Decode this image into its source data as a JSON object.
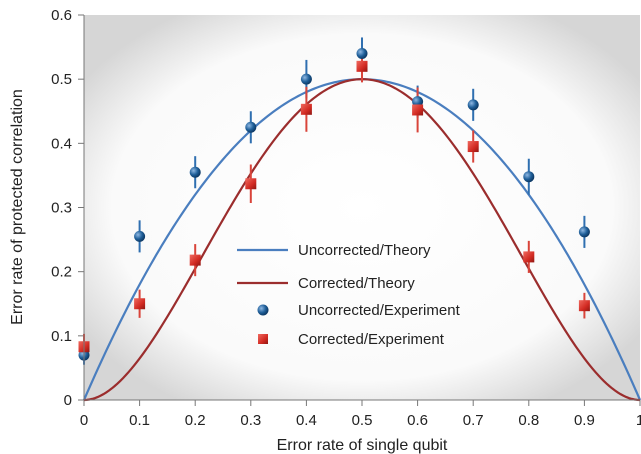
{
  "chart_data": {
    "type": "scatter",
    "xlabel": "Error rate of single qubit",
    "ylabel": "Error rate of protected correlation",
    "xlim": [
      0,
      1
    ],
    "ylim": [
      0,
      0.6
    ],
    "xticks": [
      "0",
      "0.1",
      "0.2",
      "0.3",
      "0.4",
      "0.5",
      "0.6",
      "0.7",
      "0.8",
      "0.9",
      "1"
    ],
    "yticks": [
      "0",
      "0.1",
      "0.2",
      "0.3",
      "0.4",
      "0.5",
      "0.6"
    ],
    "legend_position": "center",
    "colors": {
      "uncorrected_theory": "#4a7ebf",
      "corrected_theory": "#9b2d2d",
      "uncorrected_experiment": "#1f5f99",
      "corrected_experiment": "#d22a22",
      "error_bar_blue": "#2f6fb0",
      "error_bar_red": "#d9443a"
    },
    "series": [
      {
        "name": "Uncorrected/Theory",
        "kind": "line",
        "function": "2p(1-p)"
      },
      {
        "name": "Corrected/Theory",
        "kind": "line",
        "function": "0.5(1-(1-2p)^2)^2"
      },
      {
        "name": "Uncorrected/Experiment",
        "kind": "points",
        "x": [
          0,
          0.1,
          0.2,
          0.3,
          0.4,
          0.5,
          0.6,
          0.7,
          0.8,
          0.9
        ],
        "y": [
          0.07,
          0.255,
          0.355,
          0.425,
          0.5,
          0.54,
          0.465,
          0.46,
          0.348,
          0.262
        ],
        "err": [
          0.015,
          0.025,
          0.025,
          0.025,
          0.03,
          0.025,
          0.025,
          0.025,
          0.028,
          0.025
        ]
      },
      {
        "name": "Corrected/Experiment",
        "kind": "points",
        "x": [
          0,
          0.1,
          0.2,
          0.3,
          0.4,
          0.5,
          0.6,
          0.7,
          0.8,
          0.9
        ],
        "y": [
          0.083,
          0.15,
          0.218,
          0.337,
          0.453,
          0.52,
          0.452,
          0.395,
          0.223,
          0.147
        ],
        "err": [
          0.02,
          0.022,
          0.025,
          0.03,
          0.035,
          0.025,
          0.035,
          0.025,
          0.025,
          0.02
        ]
      }
    ]
  }
}
